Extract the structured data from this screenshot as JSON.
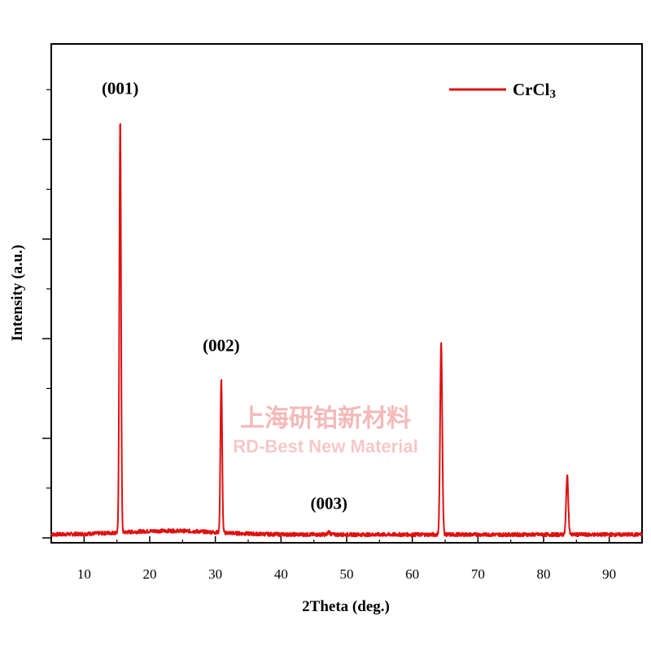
{
  "chart_data": {
    "type": "line",
    "xlabel": "2Theta (deg.)",
    "ylabel": "Intensity (a.u.)",
    "xlim": [
      5,
      95
    ],
    "ylim": [
      0,
      100
    ],
    "x_ticks": [
      10,
      20,
      30,
      40,
      50,
      60,
      70,
      80,
      90
    ],
    "y_tick_labels_shown": false,
    "legend_position": "top-right",
    "series": [
      {
        "name": "CrCl3",
        "color": "#e01010",
        "baseline": 0.8,
        "peaks": [
          {
            "x": 15.5,
            "y": 100
          },
          {
            "x": 30.9,
            "y": 38
          },
          {
            "x": 47.3,
            "y": 1.5
          },
          {
            "x": 64.4,
            "y": 47
          },
          {
            "x": 83.6,
            "y": 15
          }
        ]
      }
    ],
    "annotations": [
      {
        "text": "(001)",
        "x": 15.5,
        "y": 107
      },
      {
        "text": "(002)",
        "x": 30.9,
        "y": 45
      },
      {
        "text": "(003)",
        "x": 47.3,
        "y": 7
      }
    ],
    "legend": {
      "label_main": "CrCl",
      "label_sub": "3"
    },
    "watermark": {
      "line1": "上海研铂新材料",
      "line2": "RD-Best New Material"
    }
  }
}
